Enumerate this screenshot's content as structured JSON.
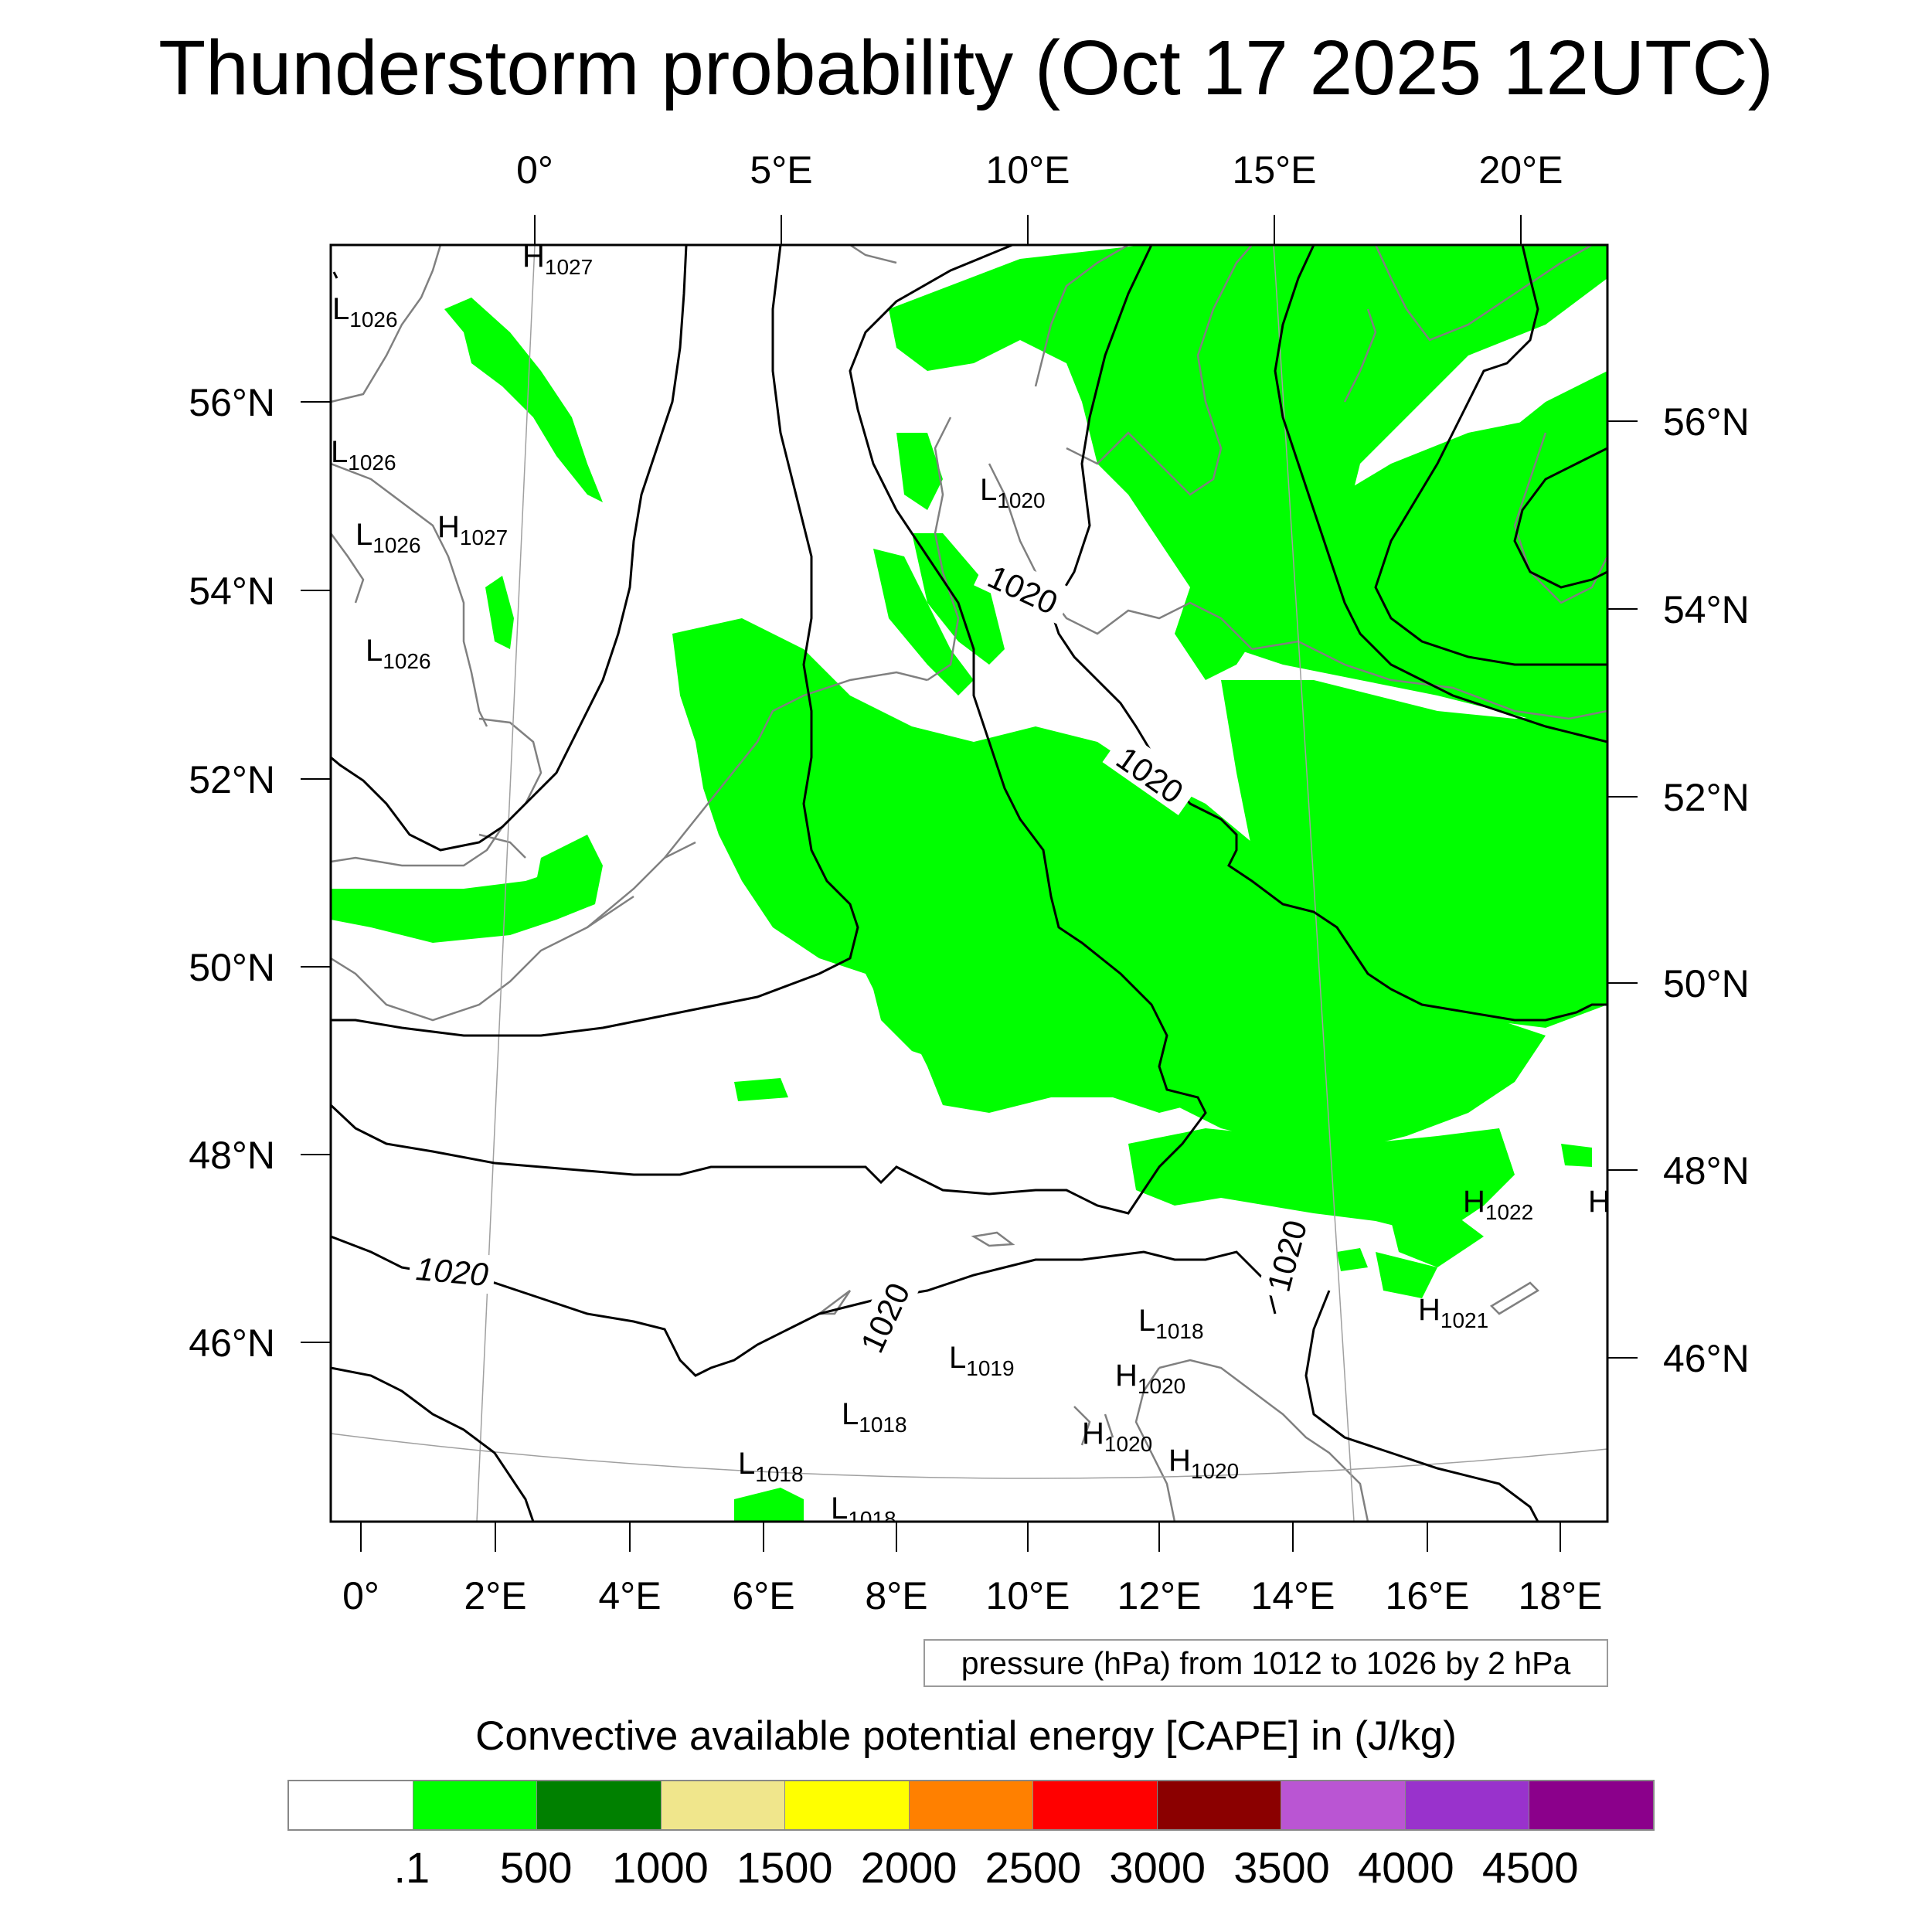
{
  "title": "Thunderstorm probability (Oct 17 2025 12UTC)",
  "top_lon_labels": [
    "0°",
    "5°E",
    "10°E",
    "15°E",
    "20°E"
  ],
  "bottom_lon_labels": [
    "0°",
    "2°E",
    "4°E",
    "6°E",
    "8°E",
    "10°E",
    "12°E",
    "14°E",
    "16°E",
    "18°E"
  ],
  "left_lat_labels": [
    "56°N",
    "54°N",
    "52°N",
    "50°N",
    "48°N",
    "46°N"
  ],
  "right_lat_labels": [
    "56°N",
    "54°N",
    "52°N",
    "50°N",
    "48°N",
    "46°N"
  ],
  "isobar_labels": [
    "1020",
    "1020",
    "1020",
    "1020",
    "1020"
  ],
  "pressure_centers": [
    {
      "type": "H",
      "value": "1027"
    },
    {
      "type": "L",
      "value": "1026"
    },
    {
      "type": "L",
      "value": "1026"
    },
    {
      "type": "L",
      "value": "1026"
    },
    {
      "type": "H",
      "value": "1027"
    },
    {
      "type": "L",
      "value": "1026"
    },
    {
      "type": "L",
      "value": "1020"
    },
    {
      "type": "H",
      "value": "1022"
    },
    {
      "type": "H",
      "value": ""
    },
    {
      "type": "H",
      "value": "1021"
    },
    {
      "type": "L",
      "value": "1018"
    },
    {
      "type": "L",
      "value": "1019"
    },
    {
      "type": "H",
      "value": "1020"
    },
    {
      "type": "L",
      "value": "1018"
    },
    {
      "type": "H",
      "value": "1020"
    },
    {
      "type": "H",
      "value": "1020"
    },
    {
      "type": "L",
      "value": "1018"
    },
    {
      "type": "L",
      "value": "1018"
    }
  ],
  "contour_legend": "pressure (hPa) from 1012 to 1026 by 2 hPa",
  "colorbar": {
    "title": "Convective available potential energy [CAPE] in (J/kg)",
    "labels": [
      ".1",
      "500",
      "1000",
      "1500",
      "2000",
      "2500",
      "3000",
      "3500",
      "4000",
      "4500"
    ],
    "colors": [
      "#ffffff",
      "#00ff00",
      "#008000",
      "#f0e68c",
      "#ffff00",
      "#ff8000",
      "#ff0000",
      "#8b0000",
      "#ba55d3",
      "#9932cc",
      "#8b008b"
    ]
  },
  "colors": {
    "cape_fill": "#00ff00",
    "coastline": "#808080",
    "isobar": "#000000"
  }
}
